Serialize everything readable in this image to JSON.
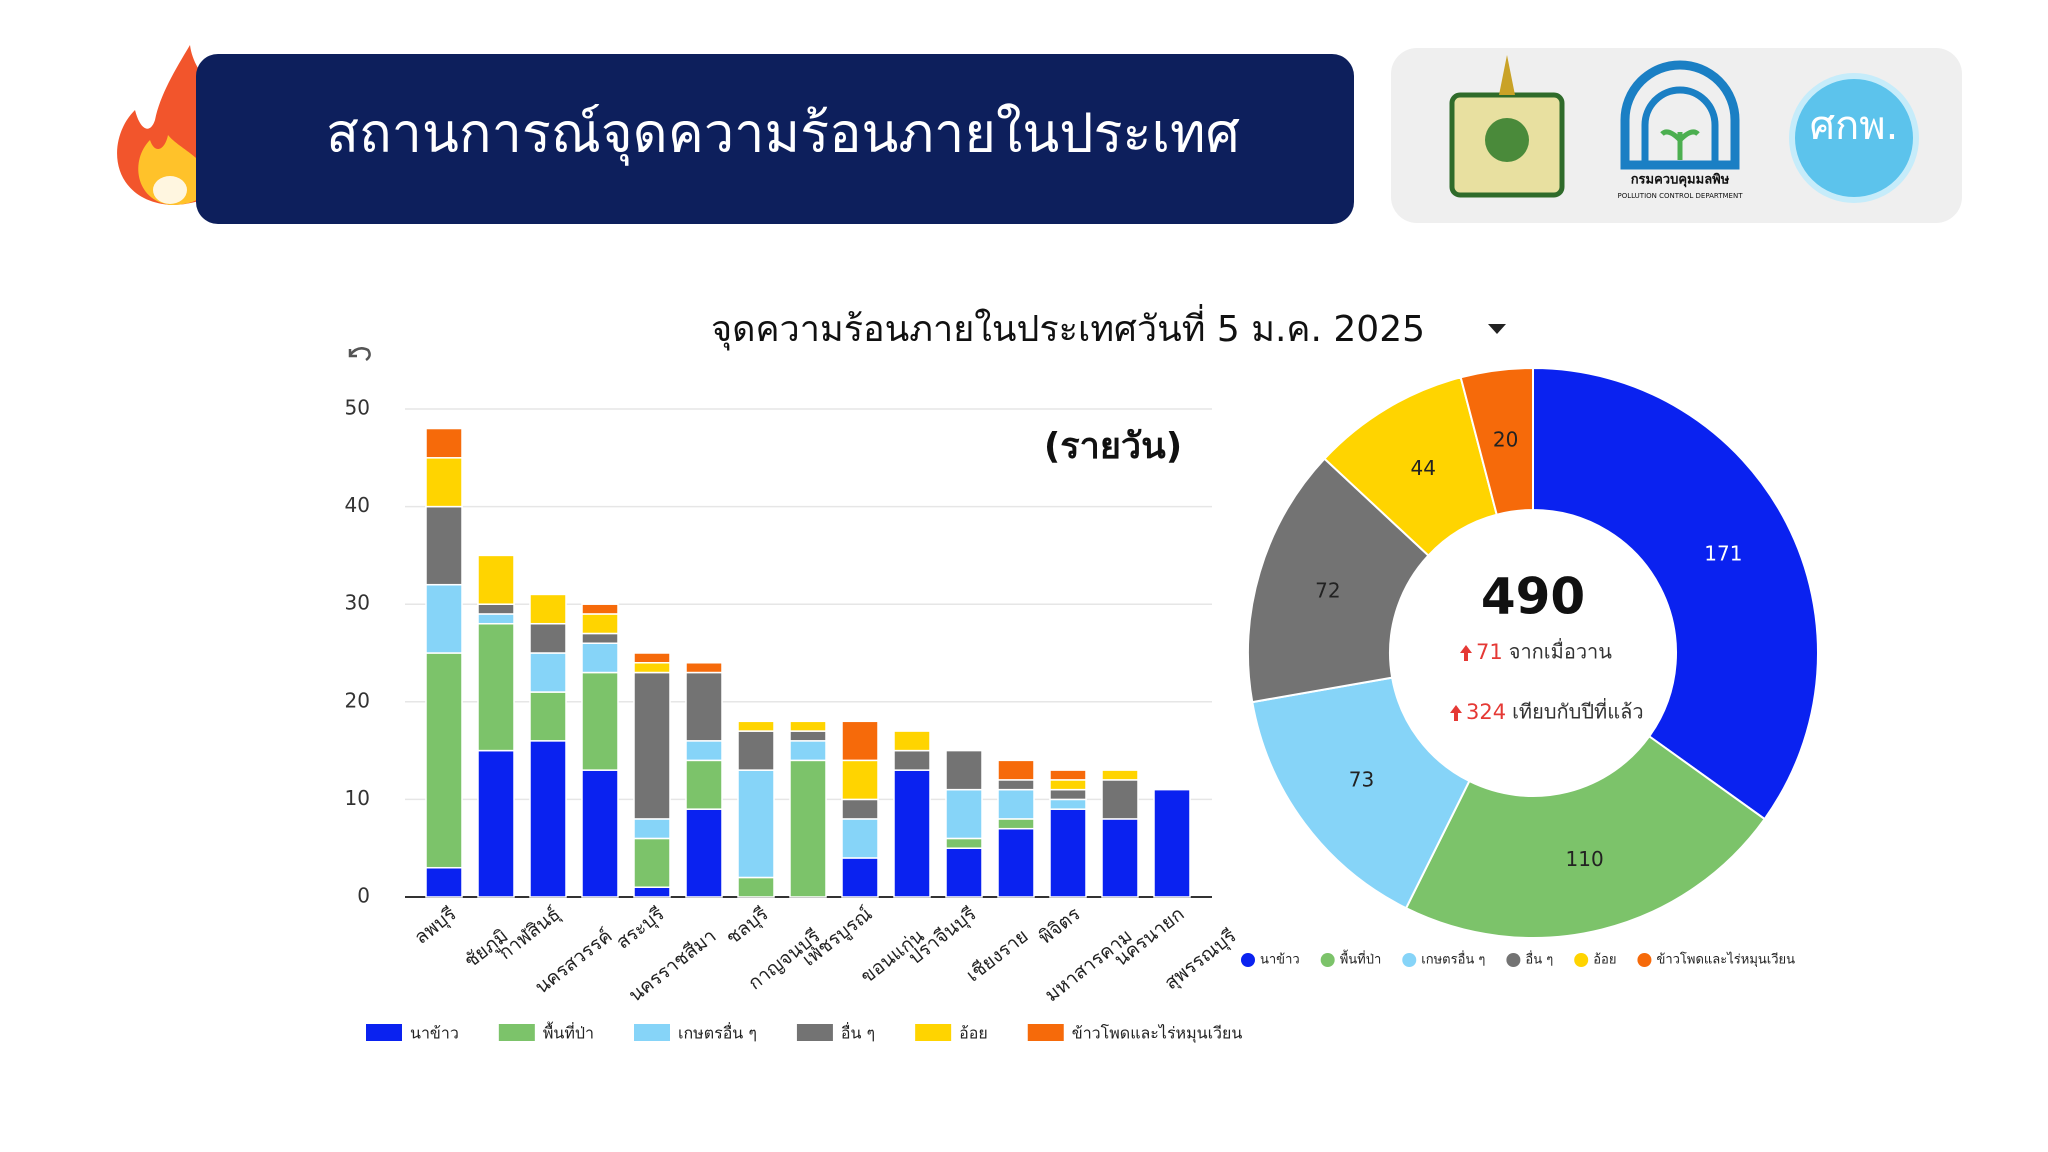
{
  "header": {
    "title": "สถานการณ์จุดความร้อนภายในประเทศ",
    "logos": [
      "กรมควบคุมมลพิษ",
      "POLLUTION CONTROL DEPARTMENT",
      "ศกพ."
    ]
  },
  "subtitle": "จุดความร้อนภายในประเทศวันที่ 5 ม.ค. 2025",
  "chart_data": [
    {
      "type": "bar",
      "stacked": true,
      "annotation": "(รายวัน)",
      "categories": [
        "ลพบุรี",
        "ชัยภูมิ",
        "กาฬสินธุ์",
        "นครสวรรค์",
        "สระบุรี",
        "นครราชสีมา",
        "ชลบุรี",
        "กาญจนบุรี",
        "เพชรบูรณ์",
        "ขอนแก่น",
        "ปราจีนบุรี",
        "เชียงราย",
        "พิจิตร",
        "มหาสารคาม",
        "นครนายก",
        "สุพรรณบุรี"
      ],
      "series": [
        {
          "name": "นาข้าว",
          "color": "#0a22f0",
          "values": [
            3,
            15,
            16,
            13,
            1,
            9,
            0,
            0,
            4,
            13,
            5,
            7,
            9,
            8,
            11,
            null
          ]
        },
        {
          "name": "พื้นที่ป่า",
          "color": "#7cc36a",
          "values": [
            22,
            13,
            5,
            10,
            5,
            5,
            2,
            14,
            0,
            0,
            1,
            1,
            0,
            0,
            0,
            null
          ]
        },
        {
          "name": "เกษตรอื่น ๆ",
          "color": "#86d4f8",
          "values": [
            7,
            1,
            4,
            3,
            2,
            2,
            11,
            2,
            4,
            0,
            5,
            3,
            1,
            0,
            0,
            null
          ]
        },
        {
          "name": "อื่น ๆ",
          "color": "#737373",
          "values": [
            8,
            1,
            3,
            1,
            15,
            7,
            4,
            1,
            2,
            2,
            4,
            1,
            1,
            4,
            0,
            null
          ]
        },
        {
          "name": "อ้อย",
          "color": "#ffd400",
          "values": [
            5,
            5,
            3,
            2,
            1,
            0,
            1,
            1,
            4,
            2,
            0,
            0,
            1,
            1,
            0,
            null
          ]
        },
        {
          "name": "ข้าวโพดและไร่หมุนเวียน",
          "color": "#f66a0a",
          "values": [
            3,
            0,
            0,
            1,
            1,
            1,
            0,
            0,
            4,
            0,
            0,
            2,
            1,
            0,
            0,
            null
          ]
        }
      ],
      "ylim": [
        0,
        50
      ],
      "yticks": [
        0,
        10,
        20,
        30,
        40,
        50
      ],
      "grid": true,
      "legend": "bottom"
    },
    {
      "type": "pie",
      "donut": true,
      "total": 490,
      "changes": [
        {
          "value": 71,
          "label": "จากเมื่อวาน"
        },
        {
          "value": 324,
          "label": "เทียบกับปีที่แล้ว"
        }
      ],
      "categories": [
        "นาข้าว",
        "พื้นที่ป่า",
        "เกษตรอื่น ๆ",
        "อื่น ๆ",
        "อ้อย",
        "ข้าวโพดและไร่หมุนเวียน"
      ],
      "values": [
        171,
        110,
        73,
        72,
        44,
        20
      ],
      "colors": [
        "#0a22f0",
        "#7cc36a",
        "#86d4f8",
        "#737373",
        "#ffd400",
        "#f66a0a"
      ],
      "legend": "bottom"
    }
  ]
}
